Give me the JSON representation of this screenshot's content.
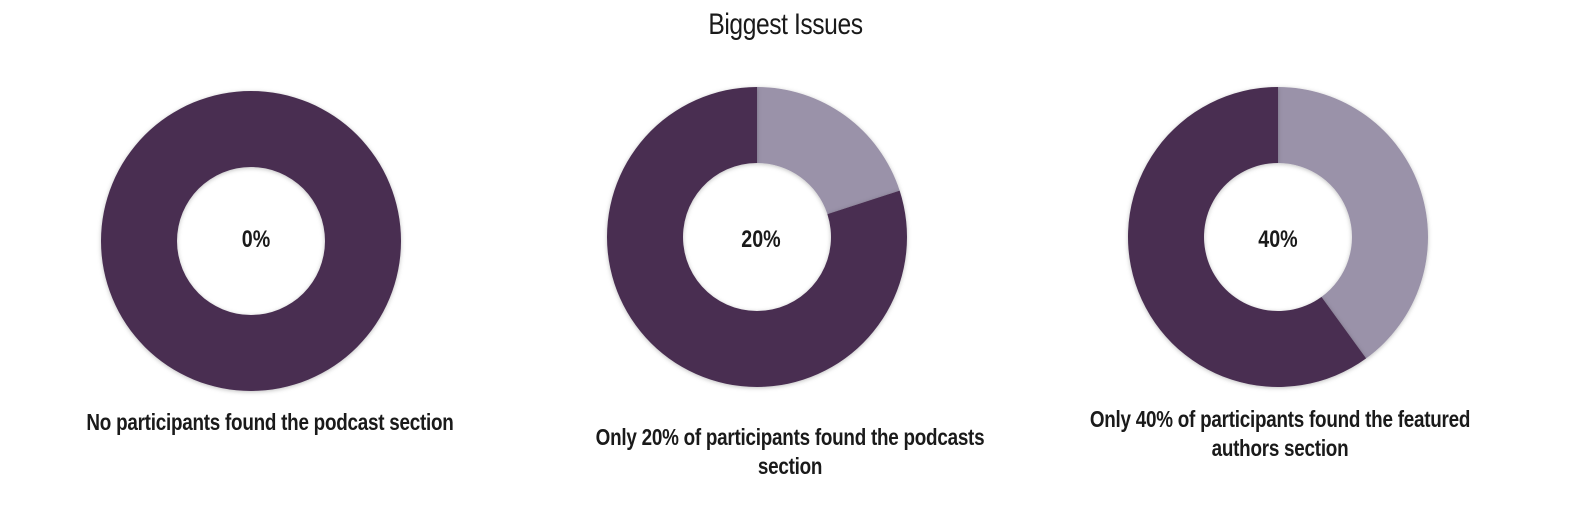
{
  "chart_data": [
    {
      "type": "pie",
      "title": "Biggest Issues",
      "center_label": "0%",
      "caption": "No participants found the podcast section",
      "slices": [
        {
          "value": 0,
          "color": "#9a92a9"
        },
        {
          "value": 100,
          "color": "#482e51"
        }
      ]
    },
    {
      "type": "pie",
      "center_label": "20%",
      "caption": "Only 20% of participants found the podcasts section",
      "slices": [
        {
          "value": 20,
          "color": "#9a92a9"
        },
        {
          "value": 80,
          "color": "#482e51"
        }
      ]
    },
    {
      "type": "pie",
      "center_label": "40%",
      "caption": "Only 40% of participants found the featured authors section",
      "slices": [
        {
          "value": 40,
          "color": "#9a92a9"
        },
        {
          "value": 60,
          "color": "#482e51"
        }
      ]
    }
  ],
  "title": "Biggest Issues",
  "colors": {
    "found": "#9a92a9",
    "not_found": "#482e51",
    "background": "#ffffff"
  }
}
